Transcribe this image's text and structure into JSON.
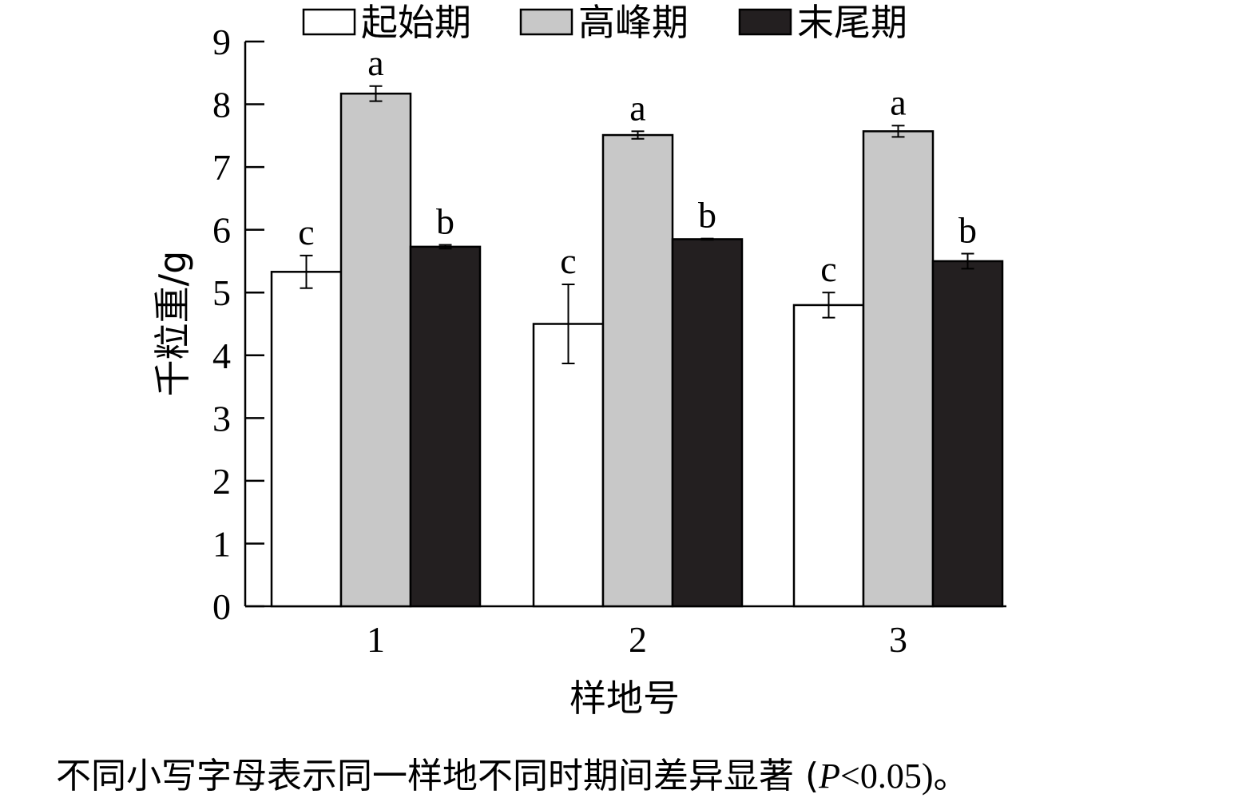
{
  "chart_data": {
    "type": "bar",
    "categories": [
      "1",
      "2",
      "3"
    ],
    "series": [
      {
        "name": "起始期",
        "color": "#ffffff",
        "values": [
          5.33,
          4.5,
          4.8
        ],
        "errors": [
          0.26,
          0.63,
          0.2
        ],
        "letters": [
          "c",
          "c",
          "c"
        ]
      },
      {
        "name": "高峰期",
        "color": "#c8c8c8",
        "values": [
          8.17,
          7.51,
          7.57
        ],
        "errors": [
          0.12,
          0.06,
          0.09
        ],
        "letters": [
          "a",
          "a",
          "a"
        ]
      },
      {
        "name": "末尾期",
        "color": "#231f20",
        "values": [
          5.73,
          5.85,
          5.5
        ],
        "errors": [
          0.03,
          0.01,
          0.12
        ],
        "letters": [
          "b",
          "b",
          "b"
        ]
      }
    ],
    "xlabel": "样地号",
    "ylabel": "千粒重/g",
    "ylim": [
      0,
      9
    ],
    "yticks": [
      "0",
      "1",
      "2",
      "3",
      "4",
      "5",
      "6",
      "7",
      "8",
      "9"
    ],
    "grid": false,
    "legend": "top"
  },
  "footnote": {
    "prefix": "不同小写字母表示同一样地不同时期间差异显著 (",
    "p_symbol": "P",
    "suffix": "<0.05)。"
  }
}
